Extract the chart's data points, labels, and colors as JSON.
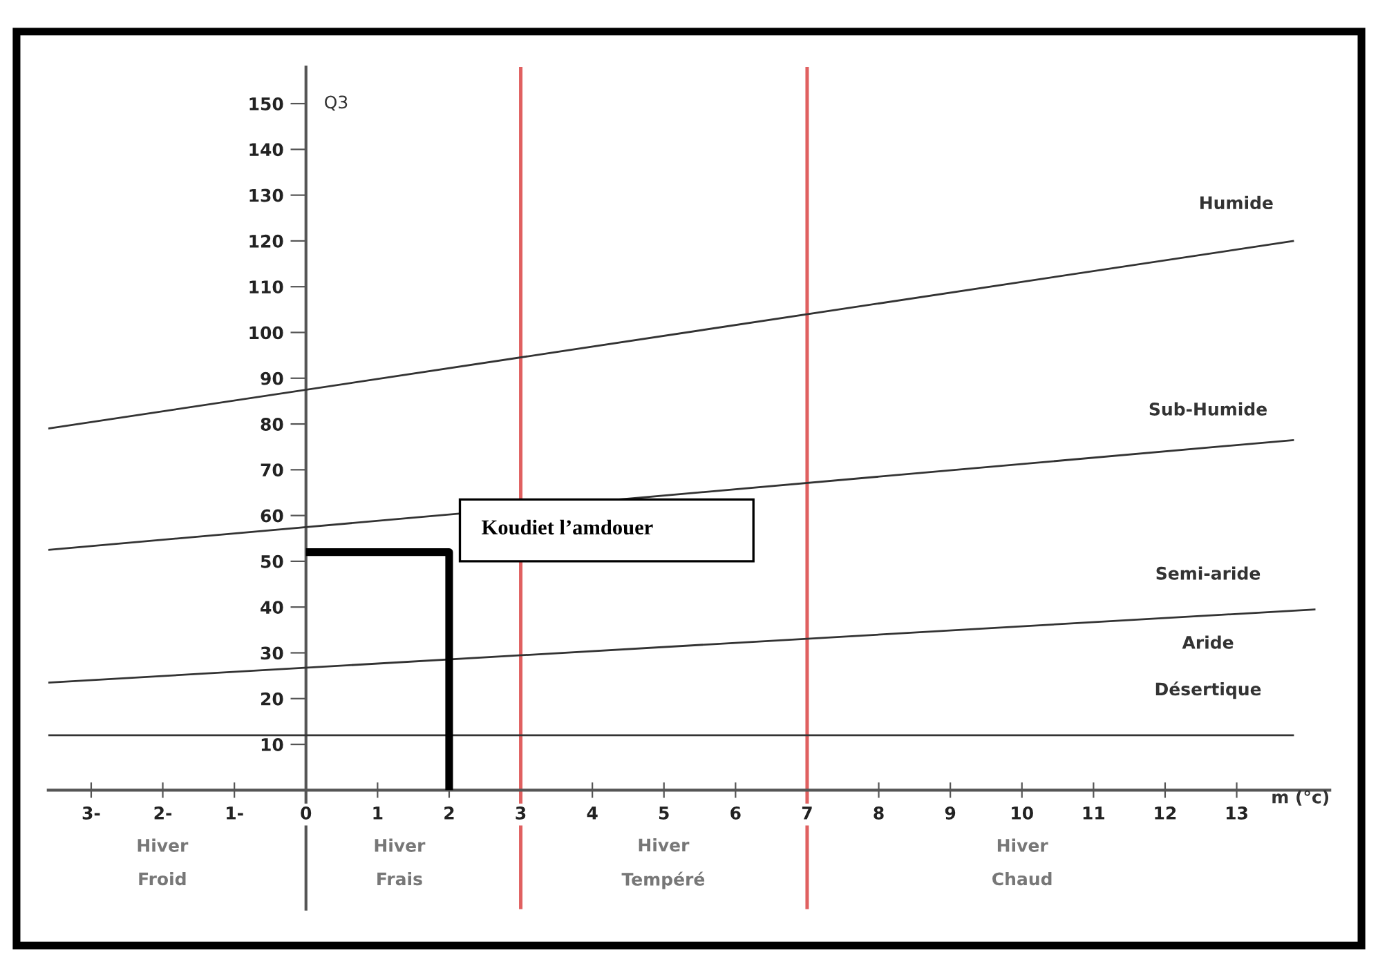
{
  "chart_data": {
    "type": "line",
    "xlabel": "m (°c)",
    "ylabel": "Q3",
    "xlim": [
      -3.6,
      14.3
    ],
    "ylim": [
      -26,
      158
    ],
    "xticks": [
      {
        "value": -3,
        "label": "3-"
      },
      {
        "value": -2,
        "label": "2-"
      },
      {
        "value": -1,
        "label": "1-"
      },
      0,
      1,
      2,
      3,
      4,
      5,
      6,
      7,
      8,
      9,
      10,
      11,
      12,
      13
    ],
    "yticks": [
      10,
      20,
      30,
      40,
      50,
      60,
      70,
      80,
      90,
      100,
      110,
      120,
      130,
      140,
      150
    ],
    "grid": false,
    "legend": false,
    "marker": "none",
    "line_style": "solid",
    "series": [
      {
        "x": [
          -3.6,
          13.8
        ],
        "values": [
          79,
          120
        ],
        "color": "#333333"
      },
      {
        "x": [
          -3.6,
          13.8
        ],
        "values": [
          52.5,
          76.5
        ],
        "color": "#333333"
      },
      {
        "x": [
          -3.6,
          14.1
        ],
        "values": [
          23.5,
          39.5
        ],
        "color": "#333333"
      },
      {
        "x": [
          -3.6,
          13.8
        ],
        "values": [
          12,
          12
        ],
        "color": "#333333"
      },
      {
        "x": [
          0,
          2,
          2
        ],
        "values": [
          52,
          52,
          0
        ],
        "color": "#000000"
      }
    ],
    "ref_lines": [
      {
        "axis": "x",
        "value": 3,
        "color": "#e06060"
      },
      {
        "axis": "x",
        "value": 7,
        "color": "#e06060"
      }
    ],
    "annotations": [
      {
        "text": "Koudiet l’amdouer",
        "x": 2,
        "y": 52
      },
      "Humide",
      "Sub-Humide",
      "Semi-aride",
      "Aride",
      "Désertique",
      "Hiver\n\nFroid",
      "Hiver\n\nFrais",
      "Hiver\n\nTempéré",
      "Hiver\n\nChaud"
    ]
  }
}
